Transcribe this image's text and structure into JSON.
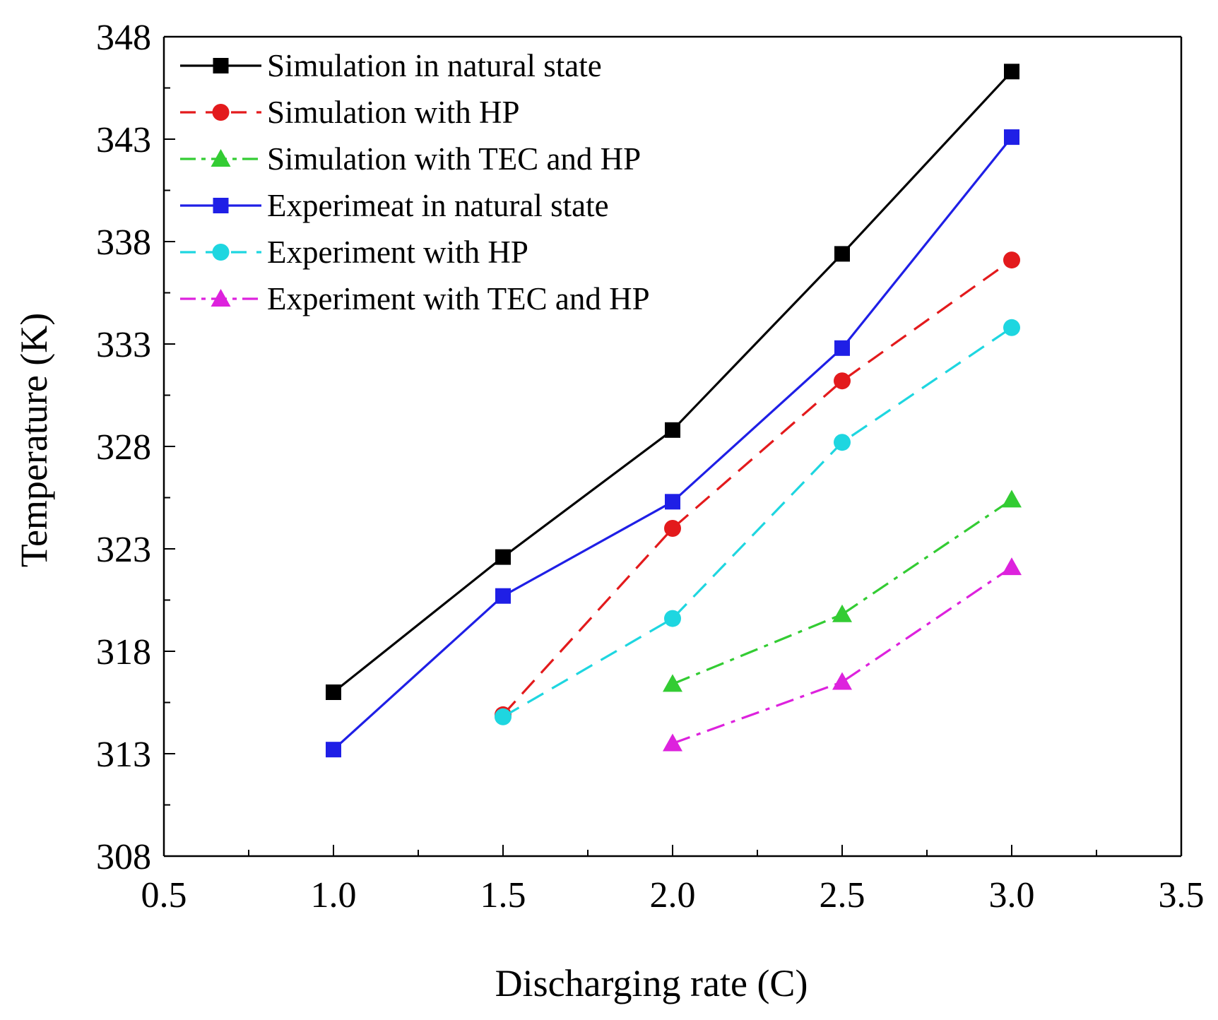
{
  "chart_data": {
    "type": "line",
    "title": "",
    "xlabel": "Discharging rate (C)",
    "ylabel": "Temperature (K)",
    "xlim": [
      0.5,
      3.5
    ],
    "ylim": [
      308,
      348
    ],
    "x_ticks": [
      "0.5",
      "1.0",
      "1.5",
      "2.0",
      "2.5",
      "3.0",
      "3.5"
    ],
    "y_ticks": [
      "308",
      "313",
      "318",
      "323",
      "328",
      "333",
      "338",
      "343",
      "348"
    ],
    "grid": false,
    "legend_position": "top-left",
    "series": [
      {
        "name": "Simulation in natural state",
        "color": "#000000",
        "marker": "square",
        "dash": "solid",
        "x": [
          1.0,
          1.5,
          2.0,
          2.5,
          3.0
        ],
        "y": [
          316.0,
          322.6,
          328.8,
          337.4,
          346.3
        ]
      },
      {
        "name": "Simulation with HP",
        "color": "#e31a1c",
        "marker": "circle",
        "dash": "dash",
        "x": [
          1.5,
          2.0,
          2.5,
          3.0
        ],
        "y": [
          314.9,
          324.0,
          331.2,
          337.1
        ]
      },
      {
        "name": "Simulation with TEC and HP",
        "color": "#33cc33",
        "marker": "triangle",
        "dash": "dashdot",
        "x": [
          2.0,
          2.5,
          3.0
        ],
        "y": [
          316.4,
          319.8,
          325.4
        ]
      },
      {
        "name": "Experimeat in natural state",
        "color": "#1f1fe6",
        "marker": "square",
        "dash": "solid",
        "x": [
          1.0,
          1.5,
          2.0,
          2.5,
          3.0
        ],
        "y": [
          313.2,
          320.7,
          325.3,
          332.8,
          343.1
        ]
      },
      {
        "name": "Experiment with HP",
        "color": "#1ed6e0",
        "marker": "circle",
        "dash": "dash",
        "x": [
          1.5,
          2.0,
          2.5,
          3.0
        ],
        "y": [
          314.8,
          319.6,
          328.2,
          333.8
        ]
      },
      {
        "name": "Experiment with TEC and HP",
        "color": "#dd22dd",
        "marker": "triangle",
        "dash": "dashdot",
        "x": [
          2.0,
          2.5,
          3.0
        ],
        "y": [
          313.5,
          316.5,
          322.1
        ]
      }
    ]
  }
}
